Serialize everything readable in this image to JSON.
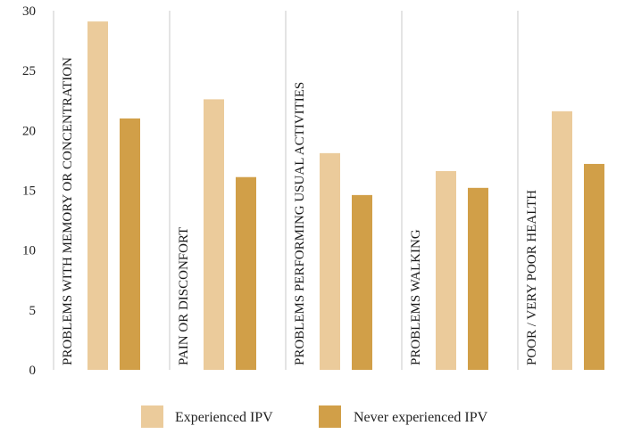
{
  "chart_data": {
    "type": "bar",
    "categories": [
      "PROBLEMS WITH MEMORY OR CONCENTRATION",
      "PAIN OR DISCONFORT",
      "PROBLEMS PERFORMING USUAL ACTIVITIES",
      "PROBLEMS WALKING",
      "POOR / VERY POOR HEALTH"
    ],
    "series": [
      {
        "name": "Experienced IPV",
        "color": "#EBCB9B",
        "values": [
          29.1,
          22.6,
          18.1,
          16.6,
          21.6
        ]
      },
      {
        "name": "Never experienced IPV",
        "color": "#D19F48",
        "values": [
          21.0,
          16.1,
          14.6,
          15.2,
          17.2
        ]
      }
    ],
    "yticks": [
      0,
      5,
      10,
      15,
      20,
      25,
      30
    ],
    "ylim": [
      0,
      30
    ],
    "grid": "vertical category separators",
    "legend_position": "bottom-center",
    "title": "",
    "xlabel": "",
    "ylabel": ""
  }
}
